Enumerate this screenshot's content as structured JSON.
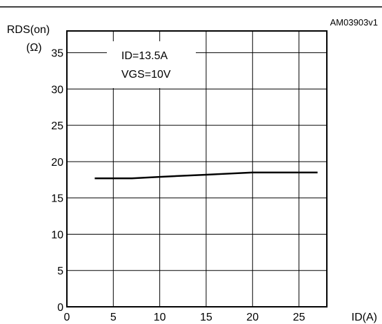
{
  "figure_id": "AM03903v1",
  "ylabel_line1": "RDS(on)",
  "ylabel_line2": "(Ω)",
  "xlabel": "ID(A)",
  "annotations": [
    "ID=13.5A",
    "VGS=10V"
  ],
  "chart_data": {
    "type": "line",
    "xlim": [
      0,
      28
    ],
    "ylim": [
      0,
      38
    ],
    "grid": true,
    "xticks": [
      {
        "value": 0,
        "label": "0"
      },
      {
        "value": 5,
        "label": "5"
      },
      {
        "value": 10,
        "label": "10"
      },
      {
        "value": 15,
        "label": "15"
      },
      {
        "value": 20,
        "label": "20"
      },
      {
        "value": 25,
        "label": "25"
      }
    ],
    "yticks": [
      {
        "value": 0,
        "label": "0"
      },
      {
        "value": 5,
        "label": "5"
      },
      {
        "value": 10,
        "label": "10"
      },
      {
        "value": 15,
        "label": "15"
      },
      {
        "value": 20,
        "label": "20"
      },
      {
        "value": 25,
        "label": "25"
      },
      {
        "value": 30,
        "label": "30"
      },
      {
        "value": 35,
        "label": "35"
      }
    ],
    "xgrid": [
      5,
      10,
      15,
      20,
      25
    ],
    "ygrid": [
      5,
      10,
      15,
      20,
      25,
      30,
      35
    ],
    "series": [
      {
        "x": [
          3,
          7,
          10,
          15,
          20,
          27
        ],
        "y": [
          17.7,
          17.7,
          17.9,
          18.2,
          18.5,
          18.5
        ]
      }
    ]
  }
}
